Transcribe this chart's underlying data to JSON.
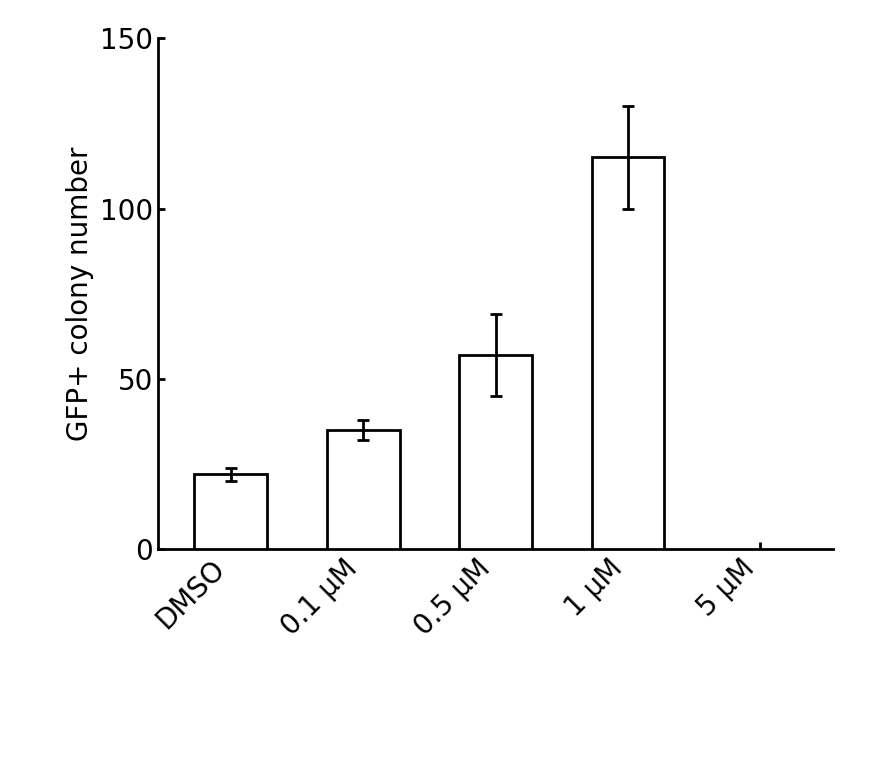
{
  "categories": [
    "DMSO",
    "0.1 μM",
    "0.5 μM",
    "1 μM",
    "5 μM"
  ],
  "values": [
    22,
    35,
    57,
    115,
    0
  ],
  "errors": [
    2,
    3,
    12,
    15,
    0
  ],
  "bar_color": "#ffffff",
  "bar_edgecolor": "#000000",
  "bar_width": 0.55,
  "ylabel": "GFP+ colony number",
  "ylim": [
    0,
    150
  ],
  "yticks": [
    0,
    50,
    100,
    150
  ],
  "background_color": "#ffffff",
  "linewidth": 2.0,
  "error_capsize": 4,
  "error_linewidth": 2.0,
  "ylabel_fontsize": 20,
  "tick_fontsize": 20,
  "figsize": [
    8.77,
    7.63
  ],
  "dpi": 100
}
